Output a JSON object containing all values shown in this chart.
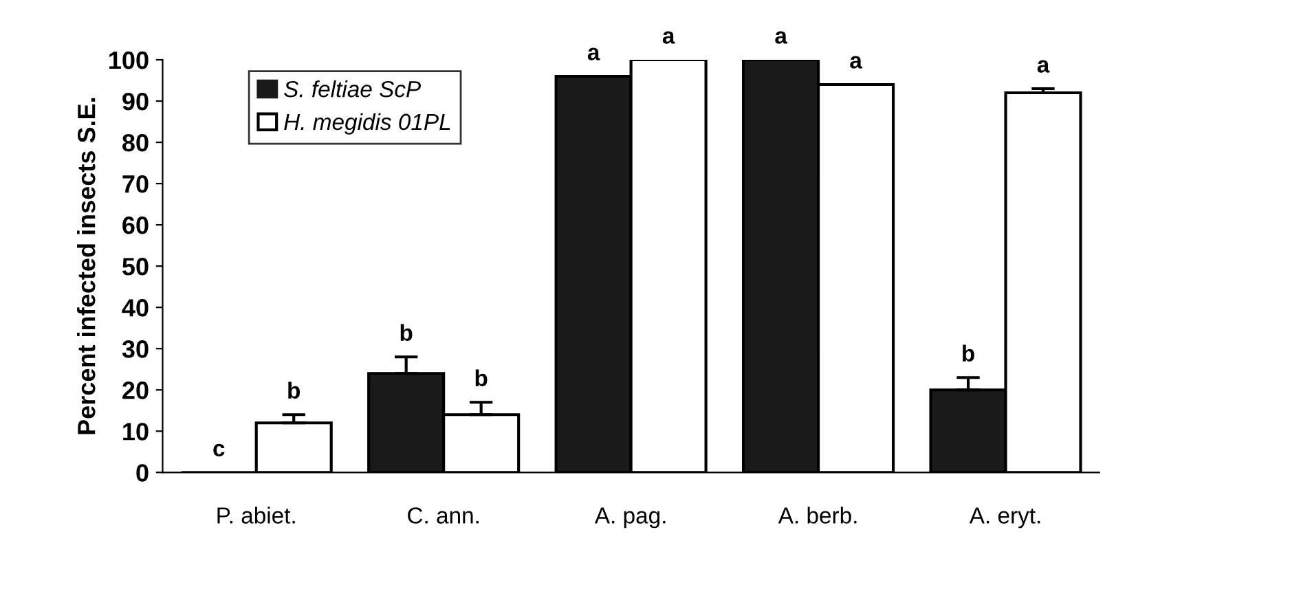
{
  "chart_data": {
    "type": "bar",
    "ylabel": "Percent infected insects S.E.",
    "categories": [
      "P. abiet.",
      "C. ann.",
      "A. pag.",
      "A. berb.",
      "A. eryt."
    ],
    "series": [
      {
        "name": "S. feltiae ScP",
        "color": "#1a1a1a",
        "values": [
          0,
          24,
          96,
          100,
          20
        ],
        "errors": [
          null,
          4,
          null,
          null,
          3
        ],
        "value_labels": [
          "c",
          "b",
          "a",
          "a",
          "b"
        ]
      },
      {
        "name": "H. megidis 01PL",
        "color": "#ffffff",
        "values": [
          12,
          14,
          100,
          94,
          92
        ],
        "errors": [
          2,
          3,
          null,
          null,
          1
        ],
        "value_labels": [
          "b",
          "b",
          "a",
          "a",
          "a"
        ]
      }
    ],
    "ylim": [
      0,
      100
    ],
    "yticks": [
      0,
      10,
      20,
      30,
      40,
      50,
      60,
      70,
      80,
      90,
      100
    ],
    "grid": false,
    "legend": "top left"
  }
}
